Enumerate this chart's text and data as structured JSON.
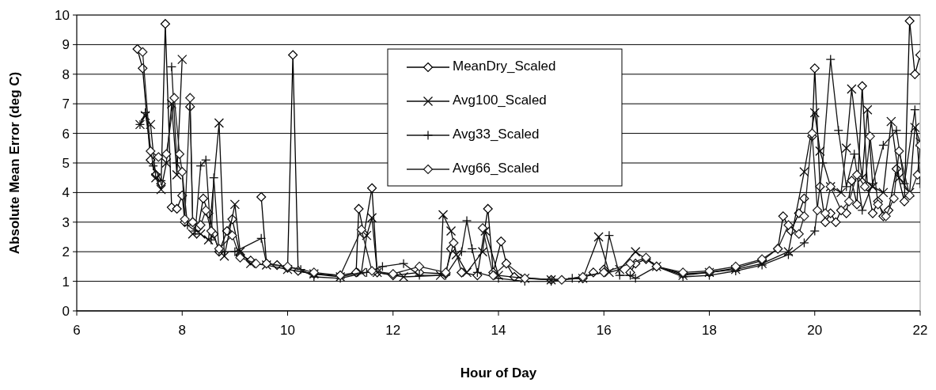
{
  "chart_data": {
    "type": "line",
    "xlabel": "Hour of Day",
    "ylabel": "Absolute Mean Error (deg C)",
    "xlim": [
      6,
      22
    ],
    "xticks": [
      6,
      8,
      10,
      12,
      14,
      16,
      18,
      20,
      22
    ],
    "ylim": [
      0,
      10
    ],
    "yticks": [
      0,
      1,
      2,
      3,
      4,
      5,
      6,
      7,
      8,
      9,
      10
    ],
    "grid": "y",
    "legend": "top",
    "line_style": "solid",
    "series": [
      {
        "name": "MeanDry_Scaled",
        "color": "#000000",
        "marker": "diamond",
        "x": [
          7.15,
          7.25,
          7.4,
          7.5,
          7.6,
          7.68,
          7.8,
          7.9,
          8.0,
          8.05,
          8.1,
          8.15,
          8.2,
          8.3,
          8.4,
          8.5,
          8.6,
          8.7,
          8.85,
          8.95,
          9.1,
          9.3,
          9.45,
          9.5,
          9.6,
          9.8,
          10.0,
          10.1,
          10.2,
          10.5,
          11.0,
          11.3,
          11.35,
          11.45,
          11.6,
          11.7,
          12.0,
          12.5,
          13.0,
          13.1,
          13.2,
          13.3,
          13.6,
          13.8,
          13.9,
          14.05,
          14.15,
          14.3,
          15.0,
          15.6,
          15.8,
          15.9,
          16.0,
          16.3,
          16.5,
          16.6,
          16.8,
          17.0,
          17.5,
          18.0,
          18.5,
          19.0,
          19.3,
          19.4,
          19.55,
          19.7,
          19.8,
          19.85,
          19.95,
          20.0,
          20.1,
          20.2,
          20.3,
          20.4,
          20.5,
          20.6,
          20.7,
          20.8,
          20.9,
          21.0,
          21.1,
          21.2,
          21.3,
          21.4,
          21.55,
          21.7,
          21.8,
          21.9,
          22.0
        ],
        "values": [
          8.85,
          8.2,
          5.1,
          4.6,
          4.3,
          9.7,
          3.5,
          3.45,
          3.9,
          3.0,
          null,
          6.9,
          3.0,
          2.8,
          3.8,
          3.3,
          2.6,
          2.0,
          2.7,
          3.1,
          1.9,
          1.7,
          null,
          3.85,
          1.6,
          1.55,
          1.45,
          8.65,
          1.35,
          1.25,
          1.2,
          1.3,
          3.45,
          2.6,
          4.15,
          1.3,
          1.2,
          1.3,
          1.25,
          2.1,
          null,
          1.3,
          1.2,
          3.45,
          1.3,
          2.35,
          1.6,
          1.15,
          1.05,
          1.1,
          1.3,
          null,
          1.4,
          null,
          1.3,
          1.6,
          1.75,
          1.5,
          1.25,
          1.3,
          1.45,
          1.7,
          2.1,
          3.2,
          2.7,
          3.3,
          3.8,
          null,
          5.9,
          8.2,
          4.2,
          3.0,
          3.3,
          3.0,
          3.4,
          3.3,
          4.4,
          3.6,
          7.6,
          4.2,
          3.3,
          3.7,
          3.2,
          3.4,
          4.8,
          3.7,
          9.8,
          8.0,
          8.65
        ]
      },
      {
        "name": "Avg100_Scaled",
        "color": "#0a0a0a",
        "marker": "x",
        "x": [
          7.2,
          7.3,
          7.4,
          7.5,
          7.6,
          7.7,
          7.8,
          7.9,
          8.0,
          8.05,
          8.2,
          8.35,
          8.5,
          8.7,
          8.8,
          9.0,
          9.1,
          9.3,
          9.6,
          10.0,
          10.5,
          11.0,
          11.4,
          11.5,
          11.6,
          11.7,
          12.2,
          12.9,
          12.95,
          13.1,
          13.2,
          13.4,
          13.7,
          13.75,
          14.0,
          14.5,
          15.0,
          15.6,
          15.9,
          16.1,
          16.3,
          16.6,
          17.0,
          17.5,
          18.0,
          18.5,
          19.0,
          19.5,
          19.8,
          20.0,
          20.1,
          20.3,
          20.5,
          20.6,
          20.7,
          20.9,
          21.0,
          21.1,
          21.3,
          21.45,
          21.6,
          21.8,
          21.9,
          22.0
        ],
        "values": [
          6.3,
          6.6,
          6.3,
          4.5,
          4.1,
          5.0,
          7.0,
          4.6,
          8.5,
          null,
          2.6,
          2.6,
          2.4,
          6.35,
          1.85,
          3.6,
          2.0,
          1.6,
          1.55,
          1.4,
          1.25,
          1.15,
          1.3,
          2.55,
          3.15,
          1.3,
          1.15,
          1.2,
          3.25,
          2.7,
          1.9,
          1.3,
          2.0,
          2.7,
          1.2,
          1.1,
          1.05,
          1.1,
          2.5,
          1.3,
          1.4,
          2.0,
          1.5,
          1.2,
          1.3,
          1.4,
          1.6,
          2.0,
          4.7,
          6.7,
          5.4,
          4.2,
          4.0,
          5.5,
          7.5,
          4.5,
          6.8,
          4.2,
          4.0,
          6.4,
          4.5,
          4.0,
          6.2,
          5.7
        ]
      },
      {
        "name": "Avg33_Scaled",
        "color": "#141414",
        "marker": "cross",
        "x": [
          7.2,
          7.3,
          7.45,
          7.6,
          7.7,
          7.8,
          7.9,
          8.0,
          8.1,
          8.25,
          8.35,
          8.45,
          8.55,
          8.6,
          8.7,
          9.0,
          9.5,
          9.6,
          10.25,
          10.5,
          11.0,
          11.5,
          11.8,
          12.2,
          12.5,
          13.0,
          13.3,
          13.4,
          13.5,
          13.6,
          14.0,
          14.5,
          15.0,
          15.4,
          16.0,
          16.1,
          16.3,
          16.5,
          16.6,
          17.0,
          17.5,
          18.0,
          18.5,
          19.0,
          19.5,
          19.8,
          20.0,
          20.15,
          20.3,
          20.45,
          20.6,
          20.75,
          20.9,
          21.1,
          21.3,
          21.55,
          21.7,
          21.9,
          22.0
        ],
        "values": [
          6.3,
          6.7,
          4.9,
          4.4,
          null,
          8.25,
          5.0,
          4.7,
          2.9,
          2.7,
          4.9,
          5.1,
          2.4,
          4.5,
          2.0,
          2.0,
          2.45,
          1.6,
          1.4,
          1.15,
          1.1,
          1.3,
          1.5,
          1.6,
          1.2,
          1.2,
          2.0,
          3.05,
          2.1,
          1.3,
          1.1,
          1.0,
          1.0,
          1.1,
          1.3,
          2.55,
          1.2,
          1.2,
          1.1,
          1.5,
          1.15,
          1.2,
          1.35,
          1.55,
          1.9,
          2.3,
          2.7,
          5.0,
          8.5,
          6.1,
          4.2,
          5.3,
          3.4,
          4.3,
          5.6,
          6.1,
          4.3,
          6.8,
          4.3
        ]
      },
      {
        "name": "Avg66_Scaled",
        "color": "#1e1e1e",
        "marker": "diamond",
        "x": [
          7.25,
          7.4,
          7.55,
          7.7,
          7.85,
          7.95,
          8.0,
          8.05,
          8.15,
          8.2,
          8.35,
          8.45,
          8.55,
          8.7,
          8.95,
          9.1,
          9.4,
          9.5,
          9.6,
          10.0,
          10.5,
          11.0,
          11.4,
          11.6,
          12.0,
          12.5,
          13.0,
          13.15,
          13.3,
          13.55,
          13.7,
          13.9,
          14.15,
          14.5,
          15.2,
          15.6,
          16.0,
          16.5,
          16.8,
          17.0,
          17.5,
          18.0,
          18.5,
          19.0,
          19.3,
          19.5,
          19.7,
          19.8,
          19.95,
          20.05,
          20.2,
          20.3,
          20.5,
          20.65,
          20.8,
          20.95,
          21.05,
          21.2,
          21.35,
          21.5,
          21.6,
          21.8,
          21.95,
          22.0
        ],
        "values": [
          8.75,
          5.4,
          5.2,
          5.3,
          7.2,
          5.3,
          4.7,
          3.1,
          7.2,
          3.0,
          2.9,
          3.4,
          2.7,
          2.1,
          2.55,
          1.8,
          1.6,
          null,
          1.6,
          1.5,
          1.3,
          1.2,
          2.75,
          1.35,
          1.25,
          1.5,
          1.3,
          2.3,
          1.3,
          null,
          2.8,
          1.2,
          1.6,
          1.1,
          1.05,
          1.15,
          1.3,
          1.6,
          1.8,
          1.5,
          1.3,
          1.35,
          1.5,
          1.75,
          2.1,
          2.9,
          2.6,
          3.2,
          6.0,
          3.4,
          3.3,
          4.2,
          3.4,
          3.7,
          4.6,
          4.2,
          5.9,
          3.6,
          3.2,
          3.8,
          5.4,
          3.9,
          4.6,
          5.6
        ]
      }
    ]
  }
}
